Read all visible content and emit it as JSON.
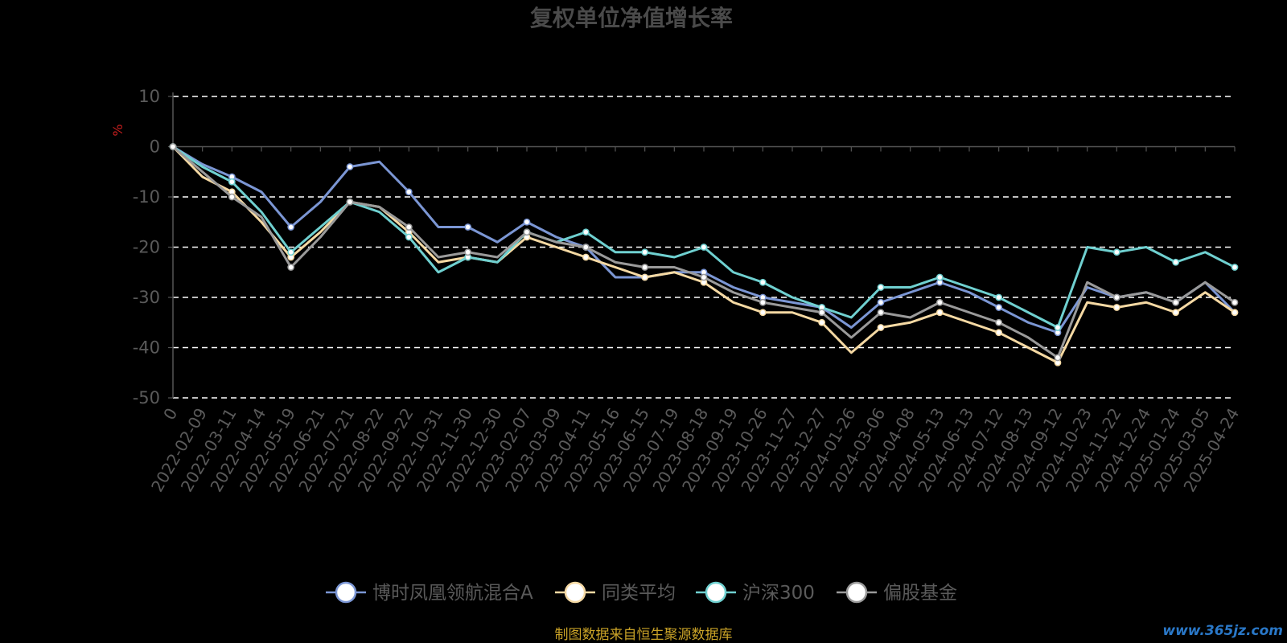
{
  "chart_data": {
    "type": "line",
    "title": "复权单位净值增长率",
    "ylabel": "%",
    "ylim": [
      -50,
      10
    ],
    "yticks": [
      10,
      0,
      -10,
      -20,
      -30,
      -40,
      -50
    ],
    "grid": true,
    "legend_position": "bottom",
    "x": [
      "0",
      "2022-02-09",
      "2022-03-11",
      "2022-04-14",
      "2022-05-19",
      "2022-06-21",
      "2022-07-21",
      "2022-08-22",
      "2022-09-22",
      "2022-10-31",
      "2022-11-30",
      "2022-12-30",
      "2023-02-07",
      "2023-03-09",
      "2023-04-11",
      "2023-05-16",
      "2023-06-15",
      "2023-07-19",
      "2023-08-18",
      "2023-09-19",
      "2023-10-26",
      "2023-11-27",
      "2023-12-27",
      "2024-01-26",
      "2024-03-06",
      "2024-04-08",
      "2024-05-13",
      "2024-06-13",
      "2024-07-12",
      "2024-08-13",
      "2024-09-12",
      "2024-10-23",
      "2024-11-22",
      "2024-12-24",
      "2025-01-24",
      "2025-03-05",
      "2025-04-24"
    ],
    "series": [
      {
        "name": "博时凤凰领航混合A",
        "color": "#7b96d4",
        "values": [
          0,
          -3.5,
          -6,
          -9,
          -16,
          -11,
          -4,
          -3,
          -9,
          -16,
          -16,
          -19,
          -15,
          -18,
          -20,
          -26,
          -26,
          -25,
          -25,
          -28,
          -30,
          -31,
          -32,
          -36,
          -31,
          -29,
          -27,
          -29,
          -32,
          -35,
          -37,
          -28,
          -30,
          -29,
          -31,
          -27,
          -33
        ]
      },
      {
        "name": "同类平均",
        "color": "#f5d9a3",
        "values": [
          0,
          -6,
          -9,
          -15,
          -22,
          -17,
          -11,
          -12,
          -17,
          -23,
          -22,
          -23,
          -18,
          -20,
          -22,
          -24,
          -26,
          -25,
          -27,
          -31,
          -33,
          -33,
          -35,
          -41,
          -36,
          -35,
          -33,
          -35,
          -37,
          -40,
          -43,
          -31,
          -32,
          -31,
          -33,
          -29,
          -33
        ]
      },
      {
        "name": "沪深300",
        "color": "#6fd0d0",
        "values": [
          0,
          -4,
          -7,
          -13,
          -21,
          -16,
          -11,
          -13,
          -18,
          -25,
          -22,
          -23,
          -17,
          -19,
          -17,
          -21,
          -21,
          -22,
          -20,
          -25,
          -27,
          -30,
          -32,
          -34,
          -28,
          -28,
          -26,
          -28,
          -30,
          -33,
          -36,
          -20,
          -21,
          -20,
          -23,
          -21,
          -24
        ]
      },
      {
        "name": "偏股基金",
        "color": "#9a9a9a",
        "values": [
          0,
          -5,
          -10,
          -14,
          -24,
          -18,
          -11,
          -12,
          -16,
          -22,
          -21,
          -22,
          -17,
          -19,
          -20,
          -23,
          -24,
          -24,
          -26,
          -29,
          -31,
          -32,
          -33,
          -38,
          -33,
          -34,
          -31,
          -33,
          -35,
          -38,
          -42,
          -27,
          -30,
          -29,
          -31,
          -27,
          -31
        ]
      }
    ]
  },
  "footer": {
    "source": "制图数据来自恒生聚源数据库",
    "watermark": "www.365jz.com"
  }
}
